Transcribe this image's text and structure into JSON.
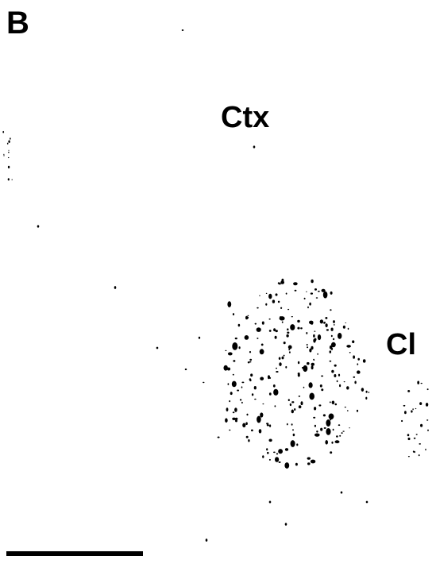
{
  "panel_label": "B",
  "labels": {
    "cortex": "Ctx",
    "claustrum": "Cl"
  }
}
